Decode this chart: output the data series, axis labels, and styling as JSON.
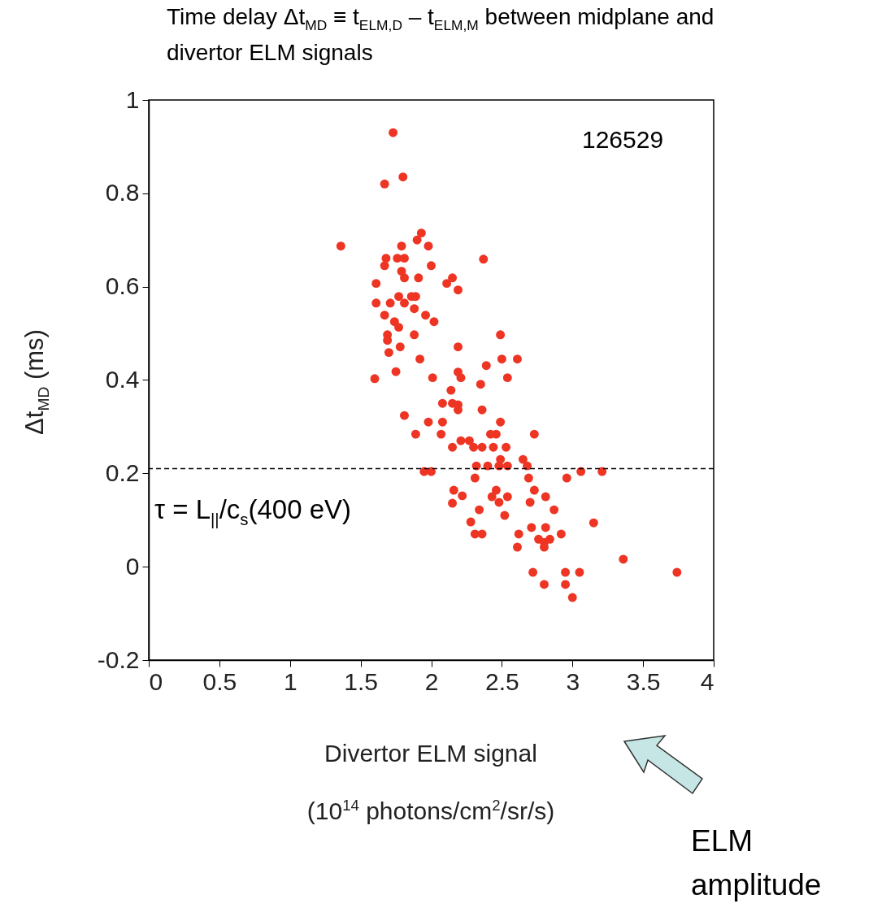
{
  "chart_data": {
    "type": "scatter",
    "title": "Time delay Δt$_{MD}$ ≡ t$_{ELM,D}$ – t$_{ELM,M}$ between midplane and divertor ELM signals",
    "xlabel": "Divertor ELM signal\n(10$^{14}$ photons/cm$^{2}$/sr/s)",
    "ylabel": "Δt$_{MD}$ (ms)",
    "annotations": [
      "126529",
      "ELM amplitude"
    ],
    "xlim": [
      0,
      4
    ],
    "xticks": [
      0,
      0.5,
      1,
      1.5,
      2,
      2.5,
      3,
      3.5,
      4
    ],
    "ylim": [
      -0.2,
      1
    ],
    "yticks": [
      -0.2,
      0,
      0.2,
      0.4,
      0.6,
      0.8,
      1
    ],
    "grid": false,
    "marker": "circle",
    "ref_lines": [
      {
        "axis": "y",
        "value": 0.21,
        "label": "τ = L$_{||}$/c$_{s}$(400 eV)",
        "line_style": "dashed",
        "color": "#000000"
      }
    ],
    "series": [
      {
        "color": "#ee3524",
        "x": [
          1.73,
          1.67,
          1.8,
          1.36,
          1.79,
          1.9,
          1.93,
          1.98,
          1.68,
          1.76,
          1.81,
          1.67,
          2.37,
          2.0,
          1.79,
          1.81,
          1.91,
          1.61,
          2.11,
          2.15,
          2.19,
          1.61,
          1.71,
          1.77,
          1.81,
          1.86,
          1.89,
          1.88,
          1.67,
          1.74,
          1.77,
          1.96,
          2.02,
          1.69,
          1.69,
          1.88,
          2.49,
          1.78,
          2.19,
          1.7,
          1.92,
          2.5,
          2.61,
          2.39,
          1.6,
          1.75,
          2.01,
          2.19,
          2.21,
          2.54,
          2.35,
          2.14,
          2.08,
          2.15,
          2.19,
          2.19,
          2.36,
          1.81,
          1.98,
          2.08,
          2.49,
          1.89,
          2.07,
          2.42,
          2.46,
          2.73,
          2.15,
          2.21,
          2.27,
          2.3,
          2.36,
          2.44,
          2.53,
          2.32,
          2.4,
          2.49,
          2.48,
          2.54,
          2.65,
          2.68,
          1.95,
          2.0,
          2.31,
          2.69,
          2.96,
          3.06,
          3.21,
          2.16,
          2.22,
          2.15,
          2.46,
          2.43,
          2.48,
          2.54,
          2.73,
          2.7,
          2.81,
          2.87,
          2.34,
          2.52,
          2.28,
          2.31,
          2.36,
          2.62,
          2.71,
          2.61,
          2.76,
          2.81,
          2.8,
          2.92,
          2.8,
          2.84,
          3.15,
          3.36,
          3.74,
          2.72,
          2.8,
          2.95,
          2.95,
          3.05,
          3.0
        ],
        "values": [
          0.93,
          0.82,
          0.835,
          0.687,
          0.687,
          0.7,
          0.715,
          0.687,
          0.661,
          0.661,
          0.661,
          0.645,
          0.659,
          0.645,
          0.633,
          0.619,
          0.619,
          0.607,
          0.607,
          0.619,
          0.593,
          0.565,
          0.565,
          0.579,
          0.565,
          0.579,
          0.579,
          0.553,
          0.539,
          0.525,
          0.513,
          0.539,
          0.525,
          0.497,
          0.485,
          0.497,
          0.497,
          0.471,
          0.471,
          0.459,
          0.445,
          0.445,
          0.445,
          0.431,
          0.403,
          0.418,
          0.405,
          0.417,
          0.405,
          0.405,
          0.391,
          0.378,
          0.35,
          0.35,
          0.347,
          0.336,
          0.336,
          0.324,
          0.31,
          0.31,
          0.31,
          0.284,
          0.284,
          0.284,
          0.284,
          0.284,
          0.256,
          0.27,
          0.27,
          0.256,
          0.256,
          0.256,
          0.256,
          0.216,
          0.216,
          0.23,
          0.216,
          0.216,
          0.23,
          0.216,
          0.204,
          0.204,
          0.19,
          0.19,
          0.19,
          0.204,
          0.204,
          0.164,
          0.152,
          0.136,
          0.164,
          0.15,
          0.138,
          0.15,
          0.164,
          0.138,
          0.15,
          0.122,
          0.122,
          0.11,
          0.096,
          0.07,
          0.07,
          0.07,
          0.084,
          0.042,
          0.059,
          0.084,
          0.042,
          0.07,
          0.052,
          0.059,
          0.094,
          0.016,
          -0.012,
          -0.012,
          -0.038,
          -0.012,
          -0.038,
          -0.012,
          -0.066
        ]
      }
    ]
  }
}
